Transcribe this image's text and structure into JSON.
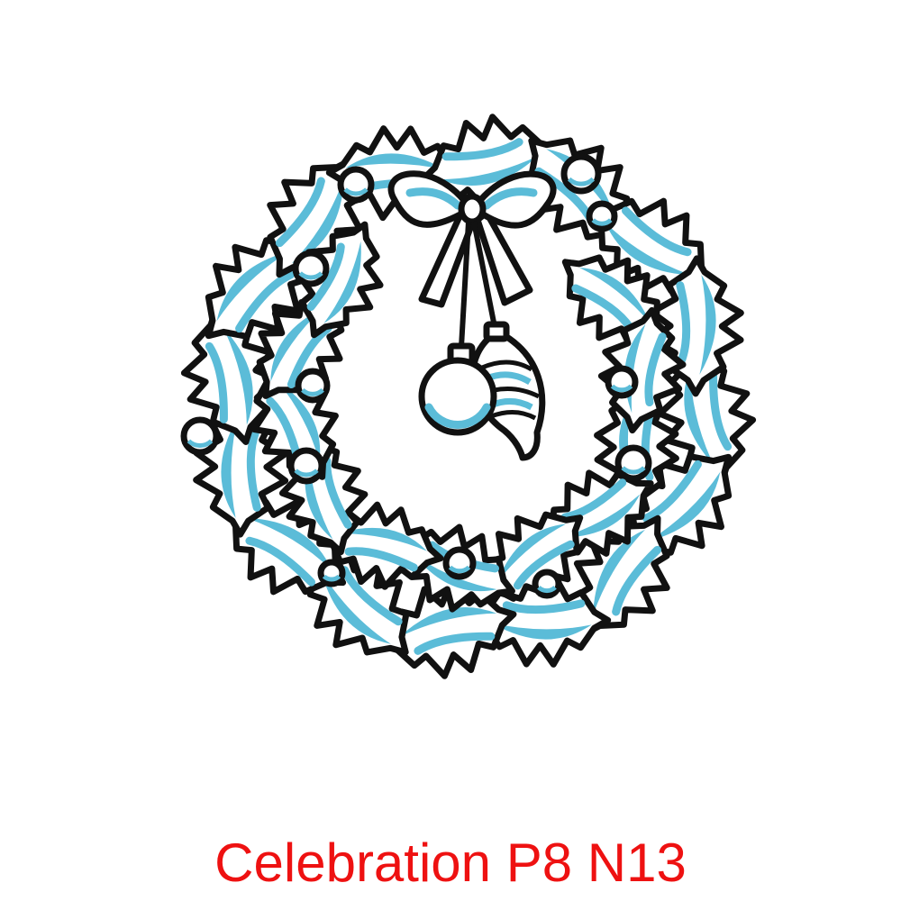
{
  "caption": {
    "text": "Celebration P8 N13",
    "color": "#ee1111"
  },
  "illustration": {
    "subject": "wreath-icon",
    "outline_color": "#111111",
    "fill_color": "#ffffff",
    "accent_color": "#5bbcd8"
  }
}
